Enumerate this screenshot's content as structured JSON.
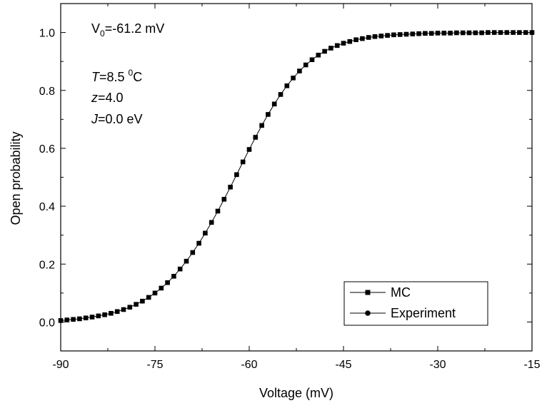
{
  "chart_data": {
    "type": "line",
    "xlabel": "Voltage (mV)",
    "ylabel": "Open probability",
    "xlim": [
      -90,
      -15
    ],
    "ylim": [
      -0.1,
      1.1
    ],
    "xticks": [
      -90,
      -75,
      -60,
      -45,
      -30,
      -15
    ],
    "yticks": [
      0.0,
      0.2,
      0.4,
      0.6,
      0.8,
      1.0
    ],
    "xtick_labels": [
      "-90",
      "-75",
      "-60",
      "-45",
      "-30",
      "-15"
    ],
    "ytick_labels": [
      "0.0",
      "0.2",
      "0.4",
      "0.6",
      "0.8",
      "1.0"
    ],
    "grid": false,
    "legend_position": "bottom-right",
    "annotations": {
      "v0_sym": "V",
      "v0_sub": "0",
      "v0_rest": "=-61.2 mV",
      "t_sym": "T",
      "t_value": "=8.5 ",
      "t_sup": "0",
      "t_unit": "C",
      "z_sym": "z",
      "z_rest": "=4.0",
      "j_sym": "J",
      "j_rest": "=0.0 eV"
    },
    "series": [
      {
        "name": "MC",
        "marker": "square",
        "x": [
          -90,
          -89,
          -88,
          -87,
          -86,
          -85,
          -84,
          -83,
          -82,
          -81,
          -80,
          -79,
          -78,
          -77,
          -76,
          -75,
          -74,
          -73,
          -72,
          -71,
          -70,
          -69,
          -68,
          -67,
          -66,
          -65,
          -64,
          -63,
          -62,
          -61,
          -60,
          -59,
          -58,
          -57,
          -56,
          -55,
          -54,
          -53,
          -52,
          -51,
          -50,
          -49,
          -48,
          -47,
          -46,
          -45,
          -44,
          -43,
          -42,
          -41,
          -40,
          -39,
          -38,
          -37,
          -36,
          -35,
          -34,
          -33,
          -32,
          -31,
          -30,
          -29,
          -28,
          -27,
          -26,
          -25,
          -24,
          -23,
          -22,
          -21,
          -20,
          -19,
          -18,
          -17,
          -16,
          -15
        ],
        "y": [
          0.005,
          0.007,
          0.009,
          0.011,
          0.014,
          0.017,
          0.021,
          0.025,
          0.03,
          0.036,
          0.043,
          0.051,
          0.061,
          0.072,
          0.085,
          0.1,
          0.117,
          0.136,
          0.158,
          0.183,
          0.21,
          0.24,
          0.272,
          0.307,
          0.344,
          0.383,
          0.424,
          0.466,
          0.509,
          0.553,
          0.596,
          0.638,
          0.679,
          0.717,
          0.753,
          0.786,
          0.816,
          0.843,
          0.867,
          0.888,
          0.906,
          0.922,
          0.935,
          0.946,
          0.955,
          0.963,
          0.969,
          0.975,
          0.979,
          0.983,
          0.986,
          0.988,
          0.99,
          0.992,
          0.993,
          0.994,
          0.995,
          0.996,
          0.997,
          0.997,
          0.998,
          0.998,
          0.998,
          0.999,
          0.999,
          0.999,
          0.999,
          0.999,
          1.0,
          1.0,
          1.0,
          1.0,
          1.0,
          1.0,
          1.0,
          1.0
        ]
      },
      {
        "name": "Experiment",
        "marker": "circle",
        "x": [],
        "y": []
      }
    ]
  }
}
